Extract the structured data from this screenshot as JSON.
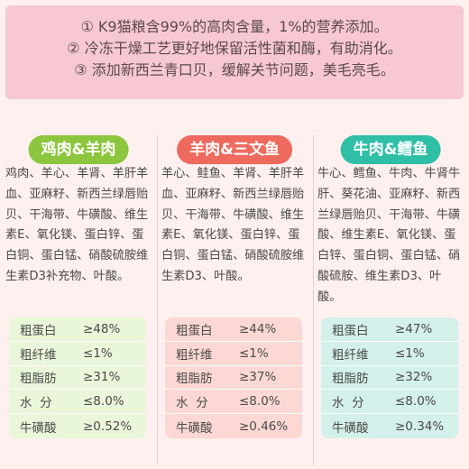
{
  "intro": {
    "lines": [
      "① K9猫粮含99%的高肉含量，1%的营养添加。",
      "② 冷冻干燥工艺更好地保留活性菌和酶，有助消化。",
      "③ 添加新西兰青口贝，缓解关节问题，美毛亮毛。"
    ]
  },
  "products": [
    {
      "name": "鸡肉&羊肉",
      "color": "#8cc63e",
      "table_bg": "#eaf6d9",
      "ingredients": "鸡肉、羊心、羊肾、羊肝羊血、亚麻籽、新西兰绿唇贻贝、干海带、牛磺酸、维生素E、氧化镁、蛋白锌、蛋白铜、蛋白锰、硝酸硫胺维生素D3补充物、叶酸。",
      "nutrition": [
        {
          "label": "粗蛋白",
          "value": "≥48%"
        },
        {
          "label": "粗纤维",
          "value": "≤1%"
        },
        {
          "label": "粗脂肪",
          "value": "≥31%"
        },
        {
          "label": "水  分",
          "value": "≤8.0%"
        },
        {
          "label": "牛磺酸",
          "value": "≥0.52%"
        }
      ]
    },
    {
      "name": "羊肉&三文鱼",
      "color": "#ee6a5e",
      "table_bg": "#fbd8d3",
      "ingredients": "羊心、鲑鱼、羊肾、羊肝羊血、亚麻籽、新西兰绿唇贻贝、干海带、牛磺酸、维生素E、氧化镁、蛋白锌、蛋白铜、蛋白锰、硝酸硫胺维生素D3、叶酸。",
      "nutrition": [
        {
          "label": "粗蛋白",
          "value": "≥44%"
        },
        {
          "label": "粗纤维",
          "value": "≤1%"
        },
        {
          "label": "粗脂肪",
          "value": "≥37%"
        },
        {
          "label": "水  分",
          "value": "≤8.0%"
        },
        {
          "label": "牛磺酸",
          "value": "≥0.46%"
        }
      ]
    },
    {
      "name": "牛肉&鳕鱼",
      "color": "#2fbfa7",
      "table_bg": "#d4f0ea",
      "ingredients": "牛心、鳕鱼、牛肉、牛肾牛肝、葵花油、亚麻籽、新西兰绿唇贻贝、干海带、牛磺酸、维生素E、氧化镁、蛋白锌、蛋白铜、蛋白锰、硝酸硫胺、维生素D3、叶酸。",
      "nutrition": [
        {
          "label": "粗蛋白",
          "value": "≥47%"
        },
        {
          "label": "粗纤维",
          "value": "≤1%"
        },
        {
          "label": "粗脂肪",
          "value": "≥32%"
        },
        {
          "label": "水  分",
          "value": "≤8.0%"
        },
        {
          "label": "牛磺酸",
          "value": "≥0.34%"
        }
      ]
    }
  ]
}
